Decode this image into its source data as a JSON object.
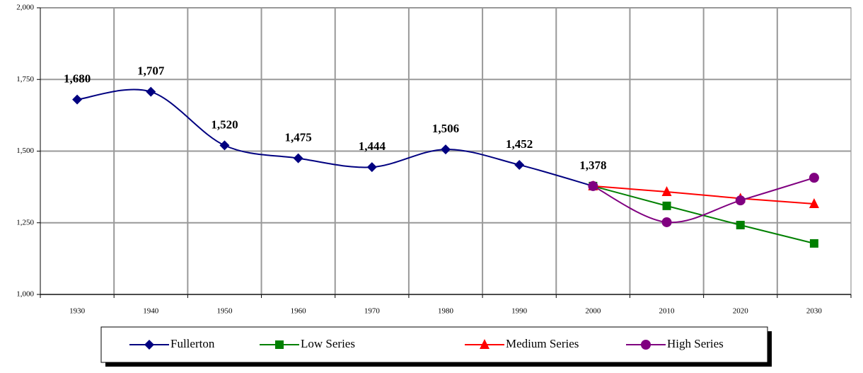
{
  "chart_data": {
    "type": "line",
    "categories": [
      "1930",
      "1940",
      "1950",
      "1960",
      "1970",
      "1980",
      "1990",
      "2000",
      "2010",
      "2020",
      "2030"
    ],
    "ylim": [
      1000,
      2000
    ],
    "yticks": [
      {
        "value": 1000,
        "label": "1,000"
      },
      {
        "value": 1250,
        "label": "1,250"
      },
      {
        "value": 1500,
        "label": "1,500"
      },
      {
        "value": 1750,
        "label": "1,750"
      },
      {
        "value": 2000,
        "label": "2,000"
      }
    ],
    "grid": true,
    "legend": "bottom",
    "series": [
      {
        "name": "Fullerton",
        "color": "#000080",
        "marker": "diamond",
        "smooth": true,
        "values": [
          1680,
          1707,
          1520,
          1475,
          1444,
          1506,
          1452,
          1378,
          null,
          null,
          null
        ],
        "value_labels": [
          "1,680",
          "1,707",
          "1,520",
          "1,475",
          "1,444",
          "1,506",
          "1,452",
          "1,378",
          null,
          null,
          null
        ]
      },
      {
        "name": "Low Series",
        "color": "#008000",
        "marker": "square",
        "smooth": false,
        "values": [
          null,
          null,
          null,
          null,
          null,
          null,
          null,
          1378,
          1309,
          1242,
          1178
        ]
      },
      {
        "name": "Medium Series",
        "color": "#ff0000",
        "marker": "triangle",
        "smooth": false,
        "values": [
          null,
          null,
          null,
          null,
          null,
          null,
          null,
          1378,
          1358,
          1335,
          1316
        ]
      },
      {
        "name": "High Series",
        "color": "#800080",
        "marker": "circle",
        "smooth": true,
        "values": [
          null,
          null,
          null,
          null,
          null,
          null,
          null,
          1378,
          1252,
          1328,
          1407
        ]
      }
    ]
  }
}
